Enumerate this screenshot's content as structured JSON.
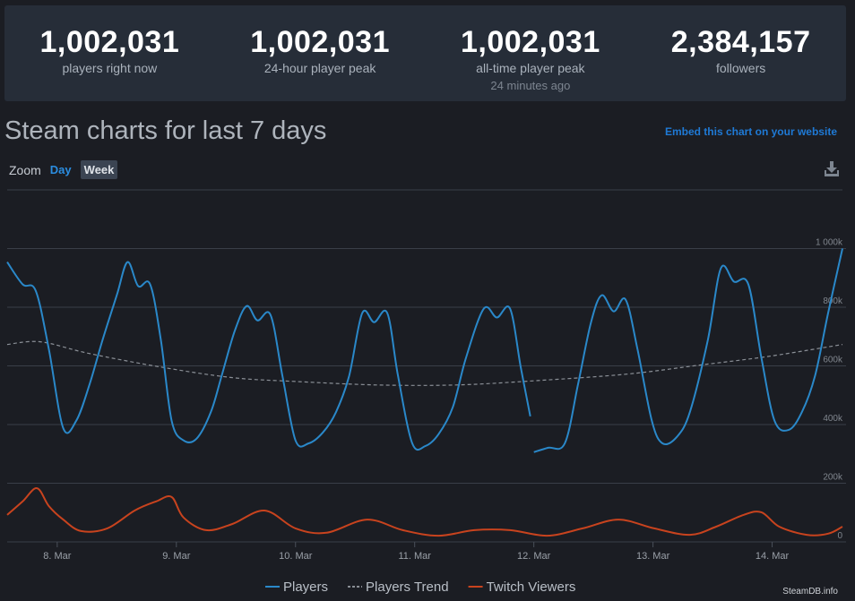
{
  "stats": [
    {
      "value": "1,002,031",
      "label": "players right now"
    },
    {
      "value": "1,002,031",
      "label": "24-hour player peak"
    },
    {
      "value": "1,002,031",
      "label": "all-time player peak",
      "sub": "24 minutes ago"
    },
    {
      "value": "2,384,157",
      "label": "followers"
    }
  ],
  "heading": "Steam charts for last 7 days",
  "embed_link": "Embed this chart on your website",
  "zoom": {
    "label": "Zoom",
    "options": [
      "Day",
      "Week"
    ]
  },
  "credit": "SteamDB.info",
  "chart_data": {
    "type": "line",
    "xlim": [
      7.58,
      14.59
    ],
    "xticks": [
      {
        "value": 8,
        "label": "8. Mar"
      },
      {
        "value": 9,
        "label": "9. Mar"
      },
      {
        "value": 10,
        "label": "10. Mar"
      },
      {
        "value": 11,
        "label": "11. Mar"
      },
      {
        "value": 12,
        "label": "12. Mar"
      },
      {
        "value": 13,
        "label": "13. Mar"
      },
      {
        "value": 14,
        "label": "14. Mar"
      }
    ],
    "ylim": [
      0,
      1200
    ],
    "yticks": [
      0,
      {
        "value": 200,
        "label": "200k"
      },
      {
        "value": 400,
        "label": "400k"
      },
      {
        "value": 600,
        "label": "600k"
      },
      {
        "value": 800,
        "label": "800k"
      },
      {
        "value": 1000,
        "label": "1 000k"
      }
    ],
    "grid": true,
    "legend": "bottom",
    "series": [
      {
        "name": "Players",
        "color": "#2a88c9",
        "dash": false,
        "x": [
          7.58,
          7.71,
          7.82,
          7.93,
          8.05,
          8.16,
          8.27,
          8.38,
          8.5,
          8.59,
          8.68,
          8.78,
          8.87,
          8.96,
          9.06,
          9.17,
          9.29,
          9.38,
          9.49,
          9.59,
          9.68,
          9.79,
          9.89,
          10.0,
          10.11,
          10.23,
          10.34,
          10.45,
          10.56,
          10.66,
          10.77,
          10.86,
          10.98,
          11.09,
          11.2,
          11.32,
          11.43,
          11.58,
          11.69,
          11.8,
          11.89,
          11.97,
          11.98,
          12.0,
          12.12,
          12.26,
          12.37,
          12.48,
          12.57,
          12.67,
          12.77,
          12.87,
          12.99,
          13.08,
          13.2,
          13.31,
          13.46,
          13.57,
          13.68,
          13.8,
          13.91,
          14.02,
          14.14,
          14.25,
          14.36,
          14.47,
          14.59
        ],
        "values": [
          954,
          878,
          856,
          657,
          388,
          413,
          535,
          688,
          841,
          954,
          872,
          878,
          688,
          413,
          346,
          352,
          443,
          566,
          719,
          804,
          755,
          774,
          566,
          346,
          336,
          373,
          443,
          566,
          780,
          749,
          780,
          566,
          336,
          327,
          367,
          459,
          627,
          795,
          765,
          795,
          596,
          428,
          null,
          306,
          321,
          336,
          535,
          749,
          841,
          786,
          826,
          657,
          413,
          336,
          358,
          443,
          688,
          933,
          887,
          878,
          627,
          413,
          382,
          443,
          566,
          780,
          1000
        ]
      },
      {
        "name": "Players Trend",
        "color": "#8a8f96",
        "dash": true,
        "x": [
          7.58,
          7.86,
          8.27,
          8.87,
          9.47,
          10.0,
          10.68,
          11.35,
          12.03,
          12.78,
          13.38,
          13.98,
          14.59
        ],
        "values": [
          673,
          682,
          642,
          596,
          560,
          547,
          535,
          535,
          550,
          572,
          602,
          633,
          673
        ]
      },
      {
        "name": "Twitch Viewers",
        "color": "#c8431e",
        "dash": false,
        "x": [
          7.58,
          7.71,
          7.83,
          7.93,
          8.05,
          8.2,
          8.42,
          8.65,
          8.83,
          8.96,
          9.06,
          9.25,
          9.47,
          9.74,
          10.0,
          10.26,
          10.6,
          10.9,
          11.2,
          11.5,
          11.8,
          12.11,
          12.41,
          12.71,
          13.01,
          13.31,
          13.53,
          13.76,
          13.91,
          14.06,
          14.29,
          14.47,
          14.59
        ],
        "values": [
          92,
          138,
          183,
          122,
          76,
          37,
          46,
          107,
          138,
          153,
          83,
          40,
          61,
          107,
          46,
          31,
          76,
          40,
          21,
          40,
          40,
          21,
          46,
          76,
          46,
          24,
          52,
          92,
          101,
          52,
          24,
          28,
          52
        ]
      }
    ]
  }
}
